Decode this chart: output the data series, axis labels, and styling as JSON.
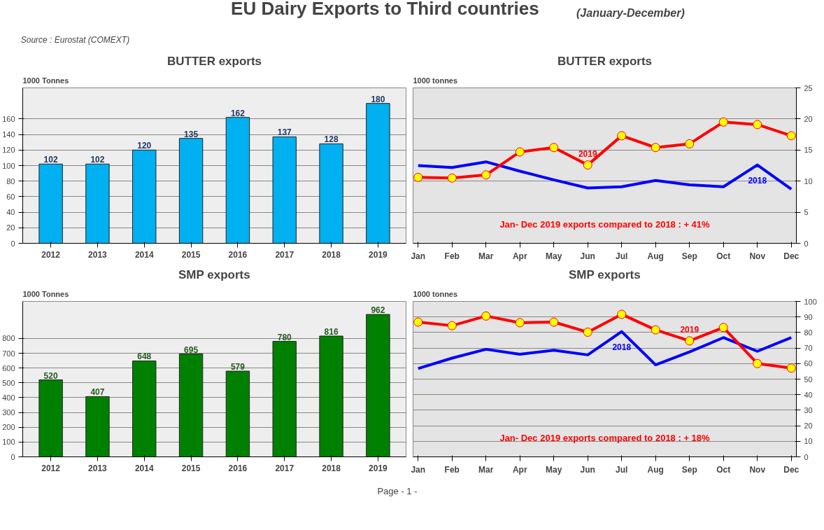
{
  "chart_data": [
    {
      "type": "other",
      "title": "EU Dairy Exports to Third countries",
      "subtitle": "(January-December)",
      "annotations": [
        "Source : Eurostat (COMEXT)",
        "Page - 1 -"
      ]
    },
    {
      "type": "bar",
      "title": "BUTTER exports",
      "ylabel": "1000 Tonnes",
      "categories": [
        "2012",
        "2013",
        "2014",
        "2015",
        "2016",
        "2017",
        "2018",
        "2019"
      ],
      "values": [
        102,
        102,
        120,
        135,
        162,
        137,
        128,
        180
      ],
      "color": "#00b0f0",
      "data_labels": true,
      "ylim": [
        0,
        200
      ],
      "yticks": [
        0,
        20,
        40,
        60,
        80,
        100,
        120,
        140,
        160
      ],
      "grid": "y"
    },
    {
      "type": "line",
      "title": "BUTTER exports",
      "ylabel": "1000 tonnes",
      "categories": [
        "Jan",
        "Feb",
        "Mar",
        "Apr",
        "May",
        "Jun",
        "Jul",
        "Aug",
        "Sep",
        "Oct",
        "Nov",
        "Dec"
      ],
      "ylim": [
        0,
        25
      ],
      "yticks": [
        0,
        5,
        10,
        15,
        20,
        25
      ],
      "grid": "y",
      "line_style": "solid",
      "annotations": [
        "Jan- Dec 2019 exports compared to 2018 : + 41%"
      ],
      "series": [
        {
          "name": "2018",
          "color": "#0000ff",
          "marker": "none",
          "values": [
            12.5,
            12.2,
            13.1,
            11.6,
            10.2,
            8.9,
            9.1,
            10.1,
            9.4,
            9.1,
            12.6,
            8.7
          ]
        },
        {
          "name": "2019",
          "color": "#ff0000",
          "marker": "circle",
          "values": [
            10.6,
            10.5,
            11.0,
            14.7,
            15.4,
            12.6,
            17.3,
            15.4,
            16.0,
            19.5,
            19.1,
            17.3
          ]
        }
      ]
    },
    {
      "type": "bar",
      "title": "SMP exports",
      "ylabel": "1000 Tonnes",
      "categories": [
        "2012",
        "2013",
        "2014",
        "2015",
        "2016",
        "2017",
        "2018",
        "2019"
      ],
      "values": [
        520,
        407,
        648,
        695,
        579,
        780,
        816,
        962
      ],
      "color": "#008000",
      "data_labels": true,
      "ylim": [
        0,
        1050
      ],
      "yticks": [
        0,
        100,
        200,
        300,
        400,
        500,
        600,
        700,
        800
      ],
      "grid": "y"
    },
    {
      "type": "line",
      "title": "SMP exports",
      "ylabel": "1000 tonnes",
      "categories": [
        "Jan",
        "Feb",
        "Mar",
        "Apr",
        "May",
        "Jun",
        "Jul",
        "Aug",
        "Sep",
        "Oct",
        "Nov",
        "Dec"
      ],
      "ylim": [
        0,
        100
      ],
      "yticks": [
        0,
        10,
        20,
        30,
        40,
        50,
        60,
        70,
        80,
        90,
        100
      ],
      "grid": "y",
      "line_style": "solid",
      "annotations": [
        "Jan- Dec 2019 exports compared to 2018 : + 18%"
      ],
      "series": [
        {
          "name": "2018",
          "color": "#0000ff",
          "marker": "none",
          "values": [
            56.8,
            63.5,
            69.2,
            66.0,
            68.6,
            65.6,
            80.6,
            59.2,
            67.5,
            76.7,
            67.9,
            76.7
          ]
        },
        {
          "name": "2019",
          "color": "#ff0000",
          "marker": "circle",
          "values": [
            86.7,
            84.4,
            90.6,
            86.3,
            86.7,
            80.2,
            91.7,
            81.7,
            74.6,
            83.2,
            60.0,
            57.1
          ]
        }
      ]
    }
  ]
}
